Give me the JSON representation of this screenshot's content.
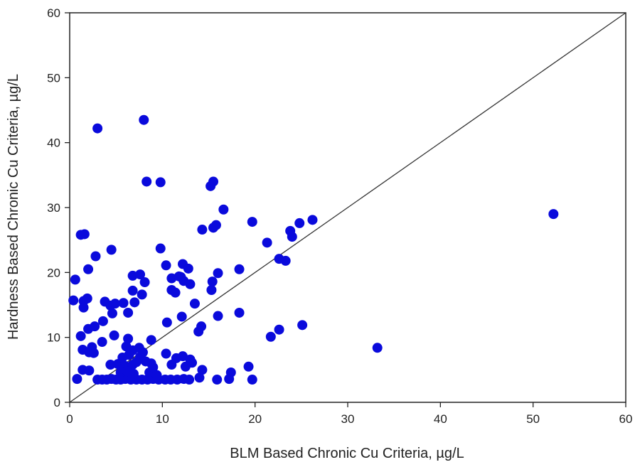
{
  "chart_data": {
    "type": "scatter",
    "title": "",
    "xlabel": "BLM Based Chronic Cu Criteria, µg/L",
    "ylabel": "Hardness Based Chronic Cu Criteria, µg/L",
    "xlim": [
      0,
      60
    ],
    "ylim": [
      0,
      60
    ],
    "xticks": [
      "0",
      "10",
      "20",
      "30",
      "40",
      "50",
      "60"
    ],
    "yticks": [
      "0",
      "10",
      "20",
      "30",
      "40",
      "50",
      "60"
    ],
    "grid": false,
    "legend": "none",
    "reference_line": {
      "from": [
        0,
        0
      ],
      "to": [
        60,
        60
      ]
    },
    "marker_color": "#0a0adc",
    "points": [
      [
        3.0,
        42.2
      ],
      [
        8.0,
        43.5
      ],
      [
        8.3,
        34.0
      ],
      [
        9.8,
        33.9
      ],
      [
        15.2,
        33.3
      ],
      [
        15.5,
        34.0
      ],
      [
        16.6,
        29.7
      ],
      [
        15.5,
        26.9
      ],
      [
        15.8,
        27.3
      ],
      [
        14.3,
        26.6
      ],
      [
        19.7,
        27.8
      ],
      [
        21.3,
        24.6
      ],
      [
        24.8,
        27.6
      ],
      [
        26.2,
        28.1
      ],
      [
        23.8,
        26.4
      ],
      [
        24.0,
        25.5
      ],
      [
        22.6,
        22.1
      ],
      [
        23.3,
        21.8
      ],
      [
        52.2,
        29.0
      ],
      [
        1.2,
        25.8
      ],
      [
        1.6,
        25.9
      ],
      [
        2.8,
        22.5
      ],
      [
        4.5,
        23.5
      ],
      [
        9.8,
        23.7
      ],
      [
        0.6,
        18.9
      ],
      [
        2.0,
        20.5
      ],
      [
        6.8,
        19.5
      ],
      [
        7.6,
        19.7
      ],
      [
        8.1,
        18.5
      ],
      [
        10.4,
        21.1
      ],
      [
        11.0,
        19.1
      ],
      [
        11.8,
        19.4
      ],
      [
        12.2,
        21.3
      ],
      [
        12.8,
        20.6
      ],
      [
        12.3,
        18.7
      ],
      [
        13.0,
        18.2
      ],
      [
        11.0,
        17.3
      ],
      [
        11.4,
        16.9
      ],
      [
        12.0,
        19.3
      ],
      [
        15.4,
        18.6
      ],
      [
        16.0,
        19.9
      ],
      [
        18.3,
        20.5
      ],
      [
        0.4,
        15.7
      ],
      [
        1.5,
        15.6
      ],
      [
        1.9,
        16.0
      ],
      [
        1.5,
        14.6
      ],
      [
        3.8,
        15.5
      ],
      [
        4.4,
        14.9
      ],
      [
        4.9,
        15.2
      ],
      [
        5.8,
        15.3
      ],
      [
        4.6,
        13.7
      ],
      [
        6.3,
        13.8
      ],
      [
        7.0,
        15.4
      ],
      [
        6.8,
        17.2
      ],
      [
        7.8,
        16.6
      ],
      [
        15.3,
        17.3
      ],
      [
        13.5,
        15.2
      ],
      [
        12.1,
        13.2
      ],
      [
        10.5,
        12.3
      ],
      [
        16.0,
        13.3
      ],
      [
        18.3,
        13.8
      ],
      [
        14.2,
        11.7
      ],
      [
        13.9,
        10.9
      ],
      [
        21.7,
        10.1
      ],
      [
        22.6,
        11.2
      ],
      [
        25.1,
        11.9
      ],
      [
        33.2,
        8.4
      ],
      [
        1.2,
        10.2
      ],
      [
        2.0,
        11.3
      ],
      [
        2.7,
        11.7
      ],
      [
        3.6,
        12.5
      ],
      [
        4.8,
        10.3
      ],
      [
        3.5,
        9.3
      ],
      [
        6.3,
        9.8
      ],
      [
        8.8,
        9.6
      ],
      [
        1.4,
        8.1
      ],
      [
        2.1,
        7.7
      ],
      [
        2.4,
        8.5
      ],
      [
        2.6,
        7.6
      ],
      [
        6.1,
        8.6
      ],
      [
        6.8,
        8.0
      ],
      [
        7.5,
        8.4
      ],
      [
        6.4,
        7.3
      ],
      [
        7.6,
        7.0
      ],
      [
        10.4,
        7.5
      ],
      [
        11.5,
        6.8
      ],
      [
        12.2,
        7.1
      ],
      [
        13.0,
        6.6
      ],
      [
        1.4,
        5.0
      ],
      [
        2.1,
        4.9
      ],
      [
        4.4,
        5.8
      ],
      [
        5.2,
        5.9
      ],
      [
        6.0,
        5.6
      ],
      [
        6.8,
        5.8
      ],
      [
        7.2,
        6.2
      ],
      [
        8.2,
        6.3
      ],
      [
        8.8,
        6.0
      ],
      [
        11.0,
        5.8
      ],
      [
        12.5,
        5.5
      ],
      [
        13.2,
        6.1
      ],
      [
        14.3,
        5.0
      ],
      [
        17.4,
        4.6
      ],
      [
        19.3,
        5.5
      ],
      [
        0.8,
        3.6
      ],
      [
        3.0,
        3.5
      ],
      [
        3.5,
        3.5
      ],
      [
        4.0,
        3.5
      ],
      [
        4.5,
        3.6
      ],
      [
        5.0,
        3.5
      ],
      [
        5.5,
        3.5
      ],
      [
        6.0,
        3.6
      ],
      [
        6.6,
        3.5
      ],
      [
        7.2,
        3.5
      ],
      [
        7.8,
        3.5
      ],
      [
        8.4,
        3.5
      ],
      [
        9.0,
        3.6
      ],
      [
        9.6,
        3.5
      ],
      [
        10.3,
        3.5
      ],
      [
        10.9,
        3.5
      ],
      [
        11.6,
        3.5
      ],
      [
        12.3,
        3.6
      ],
      [
        12.9,
        3.5
      ],
      [
        14.0,
        3.8
      ],
      [
        15.9,
        3.5
      ],
      [
        17.2,
        3.6
      ],
      [
        19.7,
        3.5
      ],
      [
        5.5,
        4.6
      ],
      [
        6.2,
        4.8
      ],
      [
        6.9,
        4.4
      ],
      [
        8.6,
        4.6
      ],
      [
        9.4,
        4.2
      ],
      [
        5.7,
        6.9
      ],
      [
        7.9,
        7.7
      ],
      [
        9.0,
        5.4
      ]
    ]
  }
}
